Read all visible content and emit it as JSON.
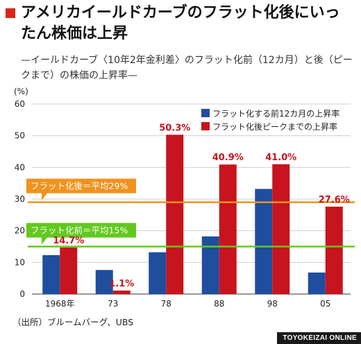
{
  "title": "アメリカイールドカーブのフラット化後にいったん株価は上昇",
  "subtitle": "—イールドカーブ〈10年2年金利差〉のフラット化前（12カ月）と後（ピークまで）の株価の上昇率—",
  "source": "（出所）ブルームバーグ、UBS",
  "credit": "TOYOKEIZAI ONLINE",
  "colors": {
    "before": "#1f4e9e",
    "after": "#c8141e",
    "after_avg_line": "#f0921e",
    "before_avg_line": "#62c81e",
    "title_mark": "#d9261c"
  },
  "chart_data": {
    "type": "bar",
    "ylabel": "(%)",
    "ylim": [
      0,
      60
    ],
    "yticks": [
      0,
      10,
      20,
      30,
      40,
      50,
      60
    ],
    "grid": "horizontal",
    "legend_position": "top-right",
    "categories": [
      "1968年",
      "73",
      "78",
      "88",
      "98",
      "05"
    ],
    "series": [
      {
        "name": "フラット化する前12カ月の上昇率",
        "values": [
          12.3,
          7.6,
          13.2,
          18.2,
          33.2,
          6.8
        ],
        "labels": [
          "",
          "",
          "",
          "",
          "",
          ""
        ]
      },
      {
        "name": "フラット化後ピークまでの上昇率",
        "values": [
          14.7,
          1.1,
          50.3,
          40.9,
          41.0,
          27.6
        ],
        "labels": [
          "14.7%",
          "1.1%",
          "50.3%",
          "40.9%",
          "41.0%",
          "27.6%"
        ]
      }
    ],
    "reference_lines": [
      {
        "label": "フラット化後＝平均29%",
        "value": 29,
        "series": "after"
      },
      {
        "label": "フラット化前＝平均15%",
        "value": 15,
        "series": "before"
      }
    ]
  }
}
